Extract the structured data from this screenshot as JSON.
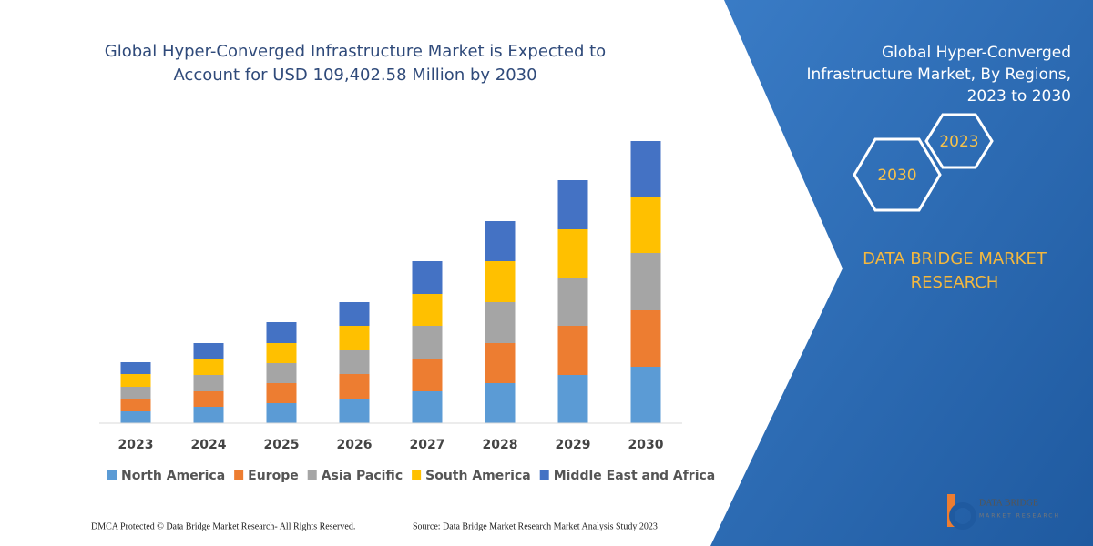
{
  "chart_data": {
    "type": "stacked_bar",
    "title": [
      "Global Hyper-Converged Infrastructure Market is Expected to",
      "Account for USD 109,402.58 Million by 2030"
    ],
    "categories": [
      "2023",
      "2024",
      "2025",
      "2026",
      "2027",
      "2028",
      "2029",
      "2030"
    ],
    "series": [
      {
        "name": "North America",
        "color": "#5b9bd5",
        "values": [
          13,
          18,
          22,
          27,
          35,
          44,
          53,
          62
        ]
      },
      {
        "name": "Europe",
        "color": "#ed7d31",
        "values": [
          14,
          17,
          22,
          27,
          36,
          44,
          54,
          62
        ]
      },
      {
        "name": "Asia Pacific",
        "color": "#a5a5a5",
        "values": [
          13,
          18,
          22,
          26,
          36,
          45,
          53,
          63
        ]
      },
      {
        "name": "South America",
        "color": "#ffc000",
        "values": [
          14,
          18,
          22,
          27,
          35,
          45,
          53,
          62
        ]
      },
      {
        "name": "Middle East and Africa",
        "color": "#4472c4",
        "values": [
          13,
          17,
          23,
          26,
          36,
          44,
          54,
          61
        ]
      }
    ],
    "ylim": [
      0,
      320
    ]
  },
  "panel": {
    "title": [
      "Global Hyper-Converged",
      "Infrastructure Market, By Regions,",
      "2023 to 2030"
    ],
    "hexagons": [
      "2023",
      "2030"
    ],
    "brand": [
      "DATA BRIDGE MARKET",
      "RESEARCH"
    ]
  },
  "footer": {
    "left": "DMCA Protected © Data Bridge Market Research-  All Rights Reserved.",
    "source": "Source: Data Bridge Market Research  Market Analysis Study 2023"
  },
  "logo": {
    "name": "DATA BRIDGE",
    "tagline": "MARKET RESEARCH"
  }
}
